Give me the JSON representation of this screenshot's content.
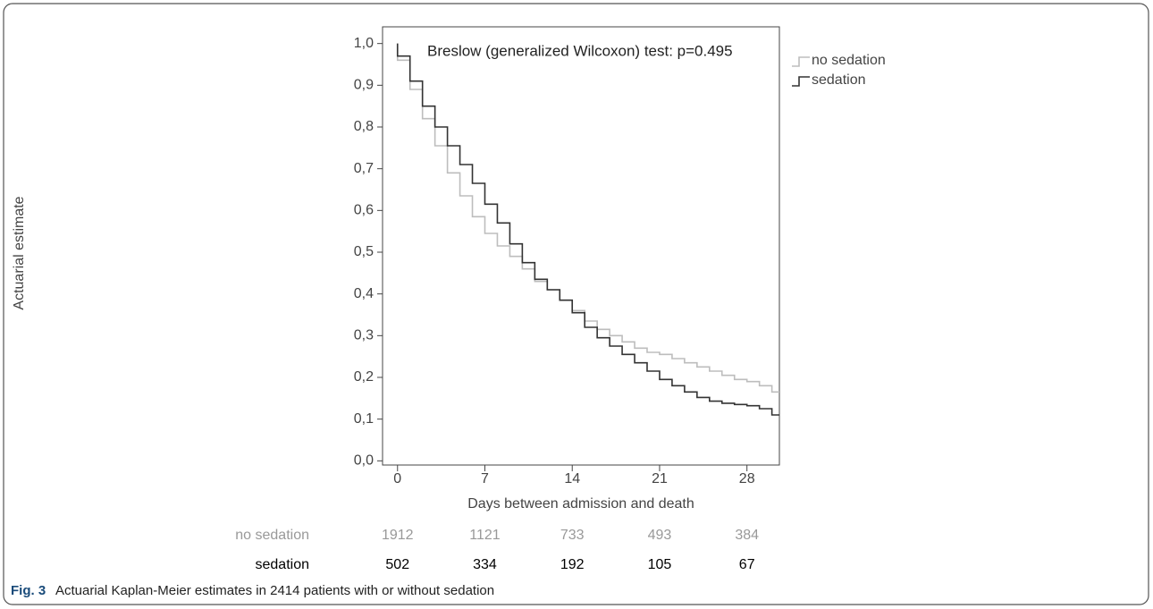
{
  "chart_data": {
    "type": "step",
    "annotation": "Breslow (generalized Wilcoxon) test: p=0.495",
    "x_label": "Days between admission and death",
    "y_label": "Actuarial estimate",
    "xlim": [
      -1.2,
      30.6
    ],
    "ylim": [
      -0.01,
      1.04
    ],
    "xticks": [
      0,
      7,
      14,
      21,
      28
    ],
    "yticks": [
      {
        "value": 0,
        "label": "0,0"
      },
      {
        "value": 0.1,
        "label": "0,1"
      },
      {
        "value": 0.2,
        "label": "0,2"
      },
      {
        "value": 0.3,
        "label": "0,3"
      },
      {
        "value": 0.4,
        "label": "0,4"
      },
      {
        "value": 0.5,
        "label": "0,5"
      },
      {
        "value": 0.6,
        "label": "0,6"
      },
      {
        "value": 0.7,
        "label": "0,7"
      },
      {
        "value": 0.8,
        "label": "0,8"
      },
      {
        "value": 0.9,
        "label": "0,9"
      },
      {
        "value": 1,
        "label": "1,0"
      }
    ],
    "x": [
      0,
      0,
      1,
      2,
      3,
      4,
      5,
      6,
      7,
      8,
      9,
      10,
      11,
      12,
      13,
      14,
      15,
      16,
      17,
      18,
      19,
      20,
      21,
      22,
      23,
      24,
      25,
      26,
      27,
      28,
      29,
      30
    ],
    "series": [
      {
        "name": "no sedation",
        "color": "#bdbdbd",
        "values": [
          1.0,
          0.96,
          0.89,
          0.82,
          0.755,
          0.69,
          0.635,
          0.585,
          0.545,
          0.515,
          0.49,
          0.46,
          0.43,
          0.41,
          0.385,
          0.36,
          0.335,
          0.315,
          0.3,
          0.285,
          0.27,
          0.26,
          0.255,
          0.245,
          0.235,
          0.225,
          0.215,
          0.205,
          0.195,
          0.19,
          0.18,
          0.165
        ]
      },
      {
        "name": "sedation",
        "color": "#333333",
        "values": [
          1.0,
          0.97,
          0.91,
          0.85,
          0.8,
          0.755,
          0.71,
          0.665,
          0.615,
          0.57,
          0.52,
          0.475,
          0.435,
          0.41,
          0.385,
          0.355,
          0.32,
          0.295,
          0.275,
          0.255,
          0.235,
          0.215,
          0.195,
          0.18,
          0.165,
          0.152,
          0.143,
          0.138,
          0.135,
          0.132,
          0.125,
          0.11
        ]
      }
    ],
    "legend": "outside-right",
    "risk_table": {
      "rows": [
        {
          "name": "no sedation",
          "color": "#999999",
          "values": [
            1912,
            1121,
            733,
            493,
            384
          ]
        },
        {
          "name": "sedation",
          "color": "#000000",
          "values": [
            502,
            334,
            192,
            105,
            67
          ]
        }
      ]
    },
    "caption_label": "Fig. 3",
    "caption": "Actuarial Kaplan-Meier estimates in 2414 patients with or without sedation"
  }
}
